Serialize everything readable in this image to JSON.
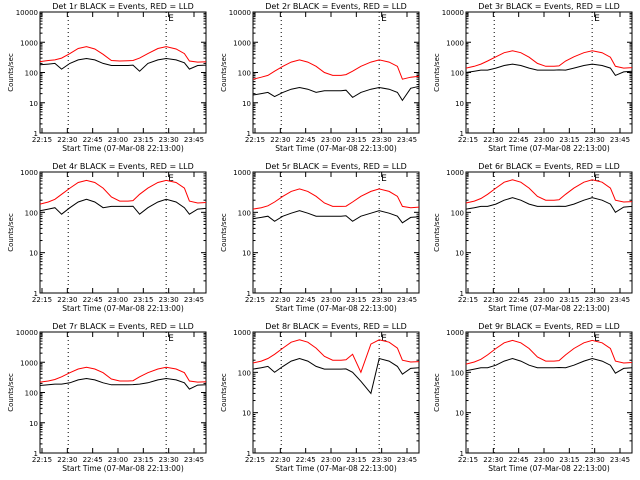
{
  "colors": {
    "events": "#000000",
    "lld": "#ff0000",
    "frame": "#000000",
    "background": "#ffffff"
  },
  "chart_data": [
    {
      "type": "line",
      "title": "Det 1r BLACK = Events, RED = LLD",
      "marker": "E",
      "xlabel": "Start Time (07-Mar-08 22:13:00)",
      "ylabel": "Counts/sec",
      "x_tick_labels": [
        "22:15",
        "22:30",
        "22:45",
        "23:00",
        "23:15",
        "23:30",
        "23:45"
      ],
      "y_tick_labels": [
        "1",
        "10",
        "100",
        "1000",
        "10000"
      ],
      "y_scale": "log",
      "ylim": [
        1,
        10000
      ],
      "xlim_minutes": [
        0,
        100
      ],
      "vertical_dotted_lines_minutes": [
        17,
        76
      ],
      "x": [
        0,
        5,
        9,
        13,
        18,
        23,
        28,
        33,
        38,
        43,
        48,
        53,
        56,
        60,
        65,
        71,
        76,
        82,
        87,
        90,
        95,
        100
      ],
      "series": [
        {
          "name": "BLACK = Events",
          "values": [
            180,
            190,
            200,
            130,
            200,
            260,
            290,
            260,
            200,
            170,
            170,
            170,
            175,
            110,
            200,
            260,
            290,
            260,
            210,
            130,
            170,
            175
          ]
        },
        {
          "name": "RED = LLD",
          "values": [
            230,
            250,
            260,
            300,
            420,
            620,
            720,
            600,
            400,
            250,
            240,
            245,
            250,
            300,
            420,
            620,
            720,
            600,
            420,
            240,
            220,
            225
          ]
        }
      ]
    },
    {
      "type": "line",
      "title": "Det 2r BLACK = Events, RED = LLD",
      "marker": "E",
      "xlabel": "Start Time (07-Mar-08 22:13:00)",
      "ylabel": "Counts/sec",
      "x_tick_labels": [
        "22:15",
        "22:30",
        "22:45",
        "23:00",
        "23:15",
        "23:30",
        "23:45"
      ],
      "y_tick_labels": [
        "1",
        "10",
        "100",
        "1000",
        "10000"
      ],
      "y_scale": "log",
      "ylim": [
        1,
        10000
      ],
      "xlim_minutes": [
        0,
        100
      ],
      "vertical_dotted_lines_minutes": [
        17,
        76
      ],
      "x": [
        0,
        5,
        9,
        13,
        18,
        23,
        28,
        33,
        38,
        43,
        48,
        53,
        56,
        60,
        65,
        71,
        76,
        82,
        87,
        90,
        95,
        100
      ],
      "series": [
        {
          "name": "BLACK = Events",
          "values": [
            18,
            20,
            22,
            16,
            22,
            28,
            32,
            28,
            22,
            25,
            25,
            25,
            26,
            15,
            22,
            28,
            32,
            28,
            22,
            12,
            30,
            35
          ]
        },
        {
          "name": "RED = LLD",
          "values": [
            60,
            70,
            80,
            110,
            160,
            220,
            260,
            220,
            160,
            100,
            80,
            80,
            85,
            110,
            160,
            220,
            260,
            220,
            160,
            60,
            70,
            75
          ]
        }
      ]
    },
    {
      "type": "line",
      "title": "Det 3r BLACK = Events, RED = LLD",
      "marker": "E",
      "xlabel": "Start Time (07-Mar-08 22:13:00)",
      "ylabel": "Counts/sec",
      "x_tick_labels": [
        "22:15",
        "22:30",
        "22:45",
        "23:00",
        "23:15",
        "23:30",
        "23:45"
      ],
      "y_tick_labels": [
        "1",
        "10",
        "100",
        "1000",
        "10000"
      ],
      "y_scale": "log",
      "ylim": [
        1,
        10000
      ],
      "xlim_minutes": [
        0,
        100
      ],
      "vertical_dotted_lines_minutes": [
        17,
        76
      ],
      "x": [
        0,
        5,
        9,
        13,
        18,
        23,
        28,
        33,
        38,
        43,
        48,
        53,
        56,
        60,
        65,
        71,
        76,
        82,
        87,
        90,
        95,
        100
      ],
      "series": [
        {
          "name": "BLACK = Events",
          "values": [
            100,
            110,
            120,
            120,
            140,
            170,
            190,
            170,
            140,
            120,
            120,
            120,
            122,
            120,
            140,
            170,
            190,
            170,
            140,
            80,
            105,
            110
          ]
        },
        {
          "name": "RED = LLD",
          "values": [
            140,
            160,
            190,
            240,
            330,
            450,
            520,
            450,
            320,
            200,
            160,
            160,
            165,
            240,
            330,
            450,
            520,
            450,
            320,
            160,
            140,
            145
          ]
        }
      ]
    },
    {
      "type": "line",
      "title": "Det 4r BLACK = Events, RED = LLD",
      "marker": "E",
      "xlabel": "Start Time (07-Mar-08 22:13:00)",
      "ylabel": "Counts/sec",
      "x_tick_labels": [
        "22:15",
        "22:30",
        "22:45",
        "23:00",
        "23:15",
        "23:30",
        "23:45"
      ],
      "y_tick_labels": [
        "1",
        "10",
        "100",
        "1000"
      ],
      "y_scale": "log",
      "ylim": [
        1,
        1000
      ],
      "xlim_minutes": [
        0,
        100
      ],
      "vertical_dotted_lines_minutes": [
        17,
        76
      ],
      "x": [
        0,
        5,
        9,
        13,
        18,
        23,
        28,
        33,
        38,
        43,
        48,
        53,
        56,
        60,
        65,
        71,
        76,
        82,
        87,
        90,
        95,
        100
      ],
      "series": [
        {
          "name": "BLACK = Events",
          "values": [
            110,
            120,
            130,
            90,
            130,
            180,
            210,
            180,
            130,
            140,
            140,
            140,
            142,
            90,
            130,
            180,
            210,
            180,
            130,
            90,
            120,
            125
          ]
        },
        {
          "name": "RED = LLD",
          "values": [
            160,
            180,
            210,
            280,
            400,
            550,
            620,
            550,
            400,
            240,
            190,
            190,
            195,
            280,
            400,
            550,
            620,
            550,
            400,
            190,
            170,
            175
          ]
        }
      ]
    },
    {
      "type": "line",
      "title": "Det 5r BLACK = Events, RED = LLD",
      "marker": "E",
      "xlabel": "Start Time (07-Mar-08 22:13:00)",
      "ylabel": "Counts/sec",
      "x_tick_labels": [
        "22:15",
        "22:30",
        "22:45",
        "23:00",
        "23:15",
        "23:30",
        "23:45"
      ],
      "y_tick_labels": [
        "1",
        "10",
        "100",
        "1000"
      ],
      "y_scale": "log",
      "ylim": [
        1,
        1000
      ],
      "xlim_minutes": [
        0,
        100
      ],
      "vertical_dotted_lines_minutes": [
        17,
        76
      ],
      "x": [
        0,
        5,
        9,
        13,
        18,
        23,
        28,
        33,
        38,
        43,
        48,
        53,
        56,
        60,
        65,
        71,
        76,
        82,
        87,
        90,
        95,
        100
      ],
      "series": [
        {
          "name": "BLACK = Events",
          "values": [
            70,
            75,
            80,
            60,
            80,
            95,
            110,
            95,
            80,
            80,
            80,
            80,
            82,
            60,
            80,
            95,
            110,
            95,
            80,
            55,
            75,
            78
          ]
        },
        {
          "name": "RED = LLD",
          "values": [
            120,
            130,
            145,
            180,
            250,
            330,
            380,
            330,
            250,
            170,
            140,
            140,
            142,
            180,
            250,
            330,
            380,
            330,
            250,
            140,
            130,
            135
          ]
        }
      ]
    },
    {
      "type": "line",
      "title": "Det 6r BLACK = Events, RED = LLD",
      "marker": "E",
      "xlabel": "Start Time (07-Mar-08 22:13:00)",
      "ylabel": "Counts/sec",
      "x_tick_labels": [
        "22:15",
        "22:30",
        "22:45",
        "23:00",
        "23:15",
        "23:30",
        "23:45"
      ],
      "y_tick_labels": [
        "1",
        "10",
        "100",
        "1000"
      ],
      "y_scale": "log",
      "ylim": [
        1,
        1000
      ],
      "xlim_minutes": [
        0,
        100
      ],
      "vertical_dotted_lines_minutes": [
        17,
        76
      ],
      "x": [
        0,
        5,
        9,
        13,
        18,
        23,
        28,
        33,
        38,
        43,
        48,
        53,
        56,
        60,
        65,
        71,
        76,
        82,
        87,
        90,
        95,
        100
      ],
      "series": [
        {
          "name": "BLACK = Events",
          "values": [
            120,
            130,
            140,
            140,
            160,
            200,
            230,
            200,
            160,
            140,
            140,
            140,
            142,
            140,
            160,
            200,
            230,
            200,
            160,
            100,
            135,
            140
          ]
        },
        {
          "name": "RED = LLD",
          "values": [
            170,
            190,
            220,
            280,
            400,
            560,
            640,
            560,
            400,
            250,
            200,
            200,
            205,
            280,
            400,
            560,
            640,
            560,
            400,
            200,
            180,
            185
          ]
        }
      ]
    },
    {
      "type": "line",
      "title": "Det 7r BLACK = Events, RED = LLD",
      "marker": "E",
      "xlabel": "Start Time (07-Mar-08 22:13:00)",
      "ylabel": "Counts/sec",
      "x_tick_labels": [
        "22:15",
        "22:30",
        "22:45",
        "23:00",
        "23:15",
        "23:30",
        "23:45"
      ],
      "y_tick_labels": [
        "1",
        "10",
        "100",
        "1000",
        "10000"
      ],
      "y_scale": "log",
      "ylim": [
        1,
        10000
      ],
      "xlim_minutes": [
        0,
        100
      ],
      "vertical_dotted_lines_minutes": [
        17,
        76
      ],
      "x": [
        0,
        5,
        9,
        13,
        18,
        23,
        28,
        33,
        38,
        43,
        48,
        53,
        56,
        60,
        65,
        71,
        76,
        82,
        87,
        90,
        95,
        100
      ],
      "series": [
        {
          "name": "BLACK = Events",
          "values": [
            170,
            180,
            190,
            190,
            210,
            260,
            290,
            260,
            210,
            180,
            180,
            180,
            182,
            190,
            210,
            260,
            290,
            260,
            210,
            130,
            175,
            180
          ]
        },
        {
          "name": "RED = LLD",
          "values": [
            220,
            240,
            270,
            330,
            450,
            600,
            680,
            600,
            450,
            280,
            240,
            240,
            245,
            330,
            450,
            600,
            680,
            600,
            450,
            240,
            220,
            225
          ]
        }
      ]
    },
    {
      "type": "line",
      "title": "Det 8r BLACK = Events, RED = LLD",
      "marker": "E",
      "xlabel": "Start Time (07-Mar-08 22:13:00)",
      "ylabel": "Counts/sec",
      "x_tick_labels": [
        "22:15",
        "22:30",
        "22:45",
        "23:00",
        "23:15",
        "23:30",
        "23:45"
      ],
      "y_tick_labels": [
        "1",
        "10",
        "100",
        "1000"
      ],
      "y_scale": "log",
      "ylim": [
        1,
        1000
      ],
      "xlim_minutes": [
        0,
        100
      ],
      "vertical_dotted_lines_minutes": [
        17,
        76
      ],
      "x": [
        0,
        5,
        9,
        13,
        18,
        23,
        28,
        33,
        38,
        43,
        48,
        53,
        56,
        60,
        65,
        71,
        76,
        82,
        87,
        90,
        95,
        100
      ],
      "series": [
        {
          "name": "BLACK = Events",
          "values": [
            120,
            130,
            140,
            100,
            140,
            190,
            220,
            190,
            140,
            120,
            120,
            120,
            122,
            100,
            60,
            30,
            220,
            190,
            140,
            90,
            125,
            130
          ]
        },
        {
          "name": "RED = LLD",
          "values": [
            170,
            190,
            220,
            280,
            400,
            560,
            640,
            560,
            400,
            250,
            200,
            200,
            205,
            280,
            100,
            500,
            640,
            560,
            400,
            200,
            180,
            185
          ]
        }
      ]
    },
    {
      "type": "line",
      "title": "Det 9r BLACK = Events, RED = LLD",
      "marker": "E",
      "xlabel": "Start Time (07-Mar-08 22:13:00)",
      "ylabel": "Counts/sec",
      "x_tick_labels": [
        "22:15",
        "22:30",
        "22:45",
        "23:00",
        "23:15",
        "23:30",
        "23:45"
      ],
      "y_tick_labels": [
        "1",
        "10",
        "100",
        "1000"
      ],
      "y_scale": "log",
      "ylim": [
        1,
        1000
      ],
      "xlim_minutes": [
        0,
        100
      ],
      "vertical_dotted_lines_minutes": [
        17,
        76
      ],
      "x": [
        0,
        5,
        9,
        13,
        18,
        23,
        28,
        33,
        38,
        43,
        48,
        53,
        56,
        60,
        65,
        71,
        76,
        82,
        87,
        90,
        95,
        100
      ],
      "series": [
        {
          "name": "BLACK = Events",
          "values": [
            110,
            120,
            130,
            130,
            150,
            190,
            220,
            190,
            150,
            130,
            130,
            130,
            132,
            130,
            150,
            190,
            220,
            190,
            150,
            95,
            125,
            130
          ]
        },
        {
          "name": "RED = LLD",
          "values": [
            160,
            180,
            210,
            270,
            390,
            540,
            620,
            540,
            390,
            240,
            190,
            190,
            195,
            270,
            390,
            540,
            620,
            540,
            390,
            190,
            170,
            175
          ]
        }
      ]
    }
  ]
}
